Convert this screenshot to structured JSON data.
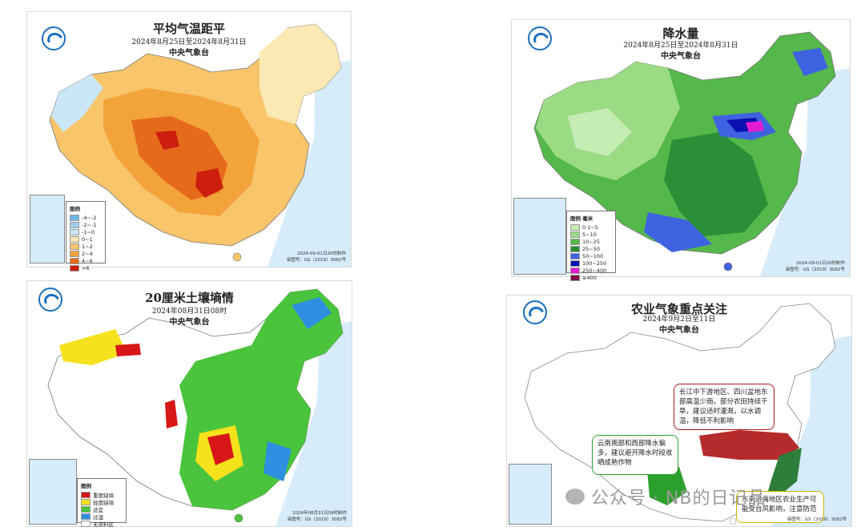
{
  "panels": {
    "temperature": {
      "title": "平均气温距平",
      "date": "2024年8月25日至2024年8月31日",
      "org": "中央气象台",
      "legend_title": "图例",
      "legend": [
        {
          "label": "-4~-2",
          "color": "#6fb6e8"
        },
        {
          "label": "-2~-1",
          "color": "#9ccff0"
        },
        {
          "label": "-1~0",
          "color": "#cbe6f7"
        },
        {
          "label": "0~1",
          "color": "#fbe8b3"
        },
        {
          "label": "1~2",
          "color": "#f8c56a"
        },
        {
          "label": "2~4",
          "color": "#f2a33a"
        },
        {
          "label": "4~6",
          "color": "#e66a1c"
        },
        {
          "label": ">6",
          "color": "#cc1f0e"
        }
      ],
      "stamp": "2024-09-01日20时制作",
      "review": "审图号：GS（2019）3082号"
    },
    "precipitation": {
      "title": "降水量",
      "date": "2024年8月25日至2024年8月31日",
      "org": "中央气象台",
      "legend_title": "图例",
      "unit": "毫米",
      "legend": [
        {
          "label": "0.1~5",
          "color": "#c6ecb5"
        },
        {
          "label": "5~10",
          "color": "#9bdb84"
        },
        {
          "label": "10~25",
          "color": "#55b84a"
        },
        {
          "label": "25~50",
          "color": "#2a8f37"
        },
        {
          "label": "50~100",
          "color": "#3f63e0"
        },
        {
          "label": "100~250",
          "color": "#0a0fb0"
        },
        {
          "label": "250~400",
          "color": "#e21cd3"
        },
        {
          "label": "≥400",
          "color": "#7a0d4a"
        }
      ],
      "stamp": "2024-09-01日20时制作",
      "review": "审图号：GS（2019）3082号"
    },
    "soil": {
      "title": "20厘米土壤墒情",
      "date": "2024年08月31日08时",
      "org": "中央气象台",
      "legend_title": "图例",
      "legend": [
        {
          "label": "重度缺墒",
          "color": "#d71717"
        },
        {
          "label": "轻度缺墒",
          "color": "#f5e11c"
        },
        {
          "label": "适宜",
          "color": "#49c43c"
        },
        {
          "label": "过湿",
          "color": "#2f8fe0"
        },
        {
          "label": "无资料区",
          "color": "#ffffff"
        }
      ],
      "stamp": "2024年08月31日09时制作",
      "review": "审图号：GS（2019）3082号"
    },
    "agri": {
      "title": "农业气象重点关注",
      "date": "2024年9月2日至11日",
      "org": "中央气象台",
      "callout_red": "长江中下游地区、四川盆地东部高温少雨，部分农田持续干旱，建议适时灌溉，以水调温，降低不利影响",
      "callout_green": "云南南部和西部降水偏多，建议避开降水时段收晒成熟作物",
      "callout_yellow": "东南沿海地区农业生产可能受台风影响，注意防范",
      "review": "审图号：GS（2019）3082号"
    }
  },
  "watermark": "公众号 · NB的日记品",
  "colors": {
    "sea": "#d6ecfa",
    "border": "#9a9a9a"
  }
}
